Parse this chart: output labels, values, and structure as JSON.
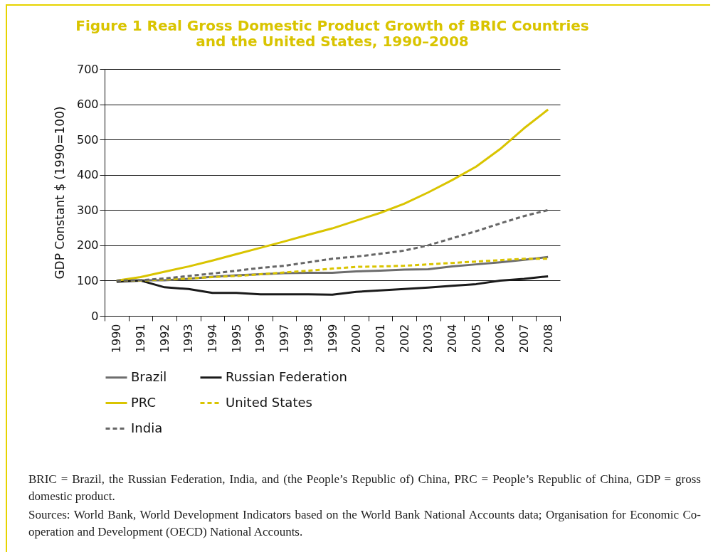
{
  "chart_data": {
    "type": "line",
    "title": "Figure 1  Real Gross Domestic Product Growth of BRIC Countries and the United States, 1990–2008",
    "ylabel": "GDP Constant $ (1990=100)",
    "categories": [
      "1990",
      "1991",
      "1992",
      "1993",
      "1994",
      "1995",
      "1996",
      "1997",
      "1998",
      "1999",
      "2000",
      "2001",
      "2002",
      "2003",
      "2004",
      "2005",
      "2006",
      "2007",
      "2008"
    ],
    "ylim": [
      0,
      700
    ],
    "yticks": [
      0,
      100,
      200,
      300,
      400,
      500,
      600,
      700
    ],
    "grid": "y",
    "legend": "bottom",
    "series": [
      {
        "name": "Brazil",
        "color": "#6d6d6d",
        "line_style": "solid",
        "values": [
          100,
          101,
          101,
          105,
          111,
          115,
          118,
          121,
          122,
          122,
          126,
          128,
          131,
          132,
          140,
          146,
          152,
          159,
          167
        ]
      },
      {
        "name": "Russian Federation",
        "color": "#1a1a1a",
        "line_style": "solid",
        "values": [
          97,
          100,
          81,
          76,
          65,
          65,
          61,
          61,
          61,
          60,
          68,
          72,
          76,
          80,
          85,
          90,
          100,
          105,
          112
        ]
      },
      {
        "name": "PRC",
        "color": "#d9c400",
        "line_style": "solid",
        "values": [
          100,
          110,
          125,
          140,
          157,
          175,
          193,
          211,
          230,
          248,
          270,
          292,
          318,
          350,
          385,
          423,
          473,
          532,
          585
        ]
      },
      {
        "name": "United States",
        "color": "#d9c400",
        "line_style": "dashed",
        "values": [
          100,
          100,
          103,
          106,
          110,
          113,
          118,
          123,
          128,
          134,
          139,
          140,
          142,
          146,
          150,
          154,
          158,
          162,
          162
        ]
      },
      {
        "name": "India",
        "color": "#666666",
        "line_style": "dashed",
        "values": [
          100,
          101,
          106,
          113,
          120,
          128,
          136,
          142,
          152,
          162,
          168,
          176,
          185,
          200,
          220,
          240,
          262,
          283,
          300
        ]
      }
    ],
    "annotations": [
      "BRIC = Brazil, the Russian Federation, India, and (the People’s Republic of) China, PRC = People’s Republic of China, GDP = gross domestic product.",
      "Sources: World Bank, World Development Indicators based on the World Bank National Accounts data; Organisation for Economic Co-operation and Development (OECD) National Accounts."
    ]
  }
}
